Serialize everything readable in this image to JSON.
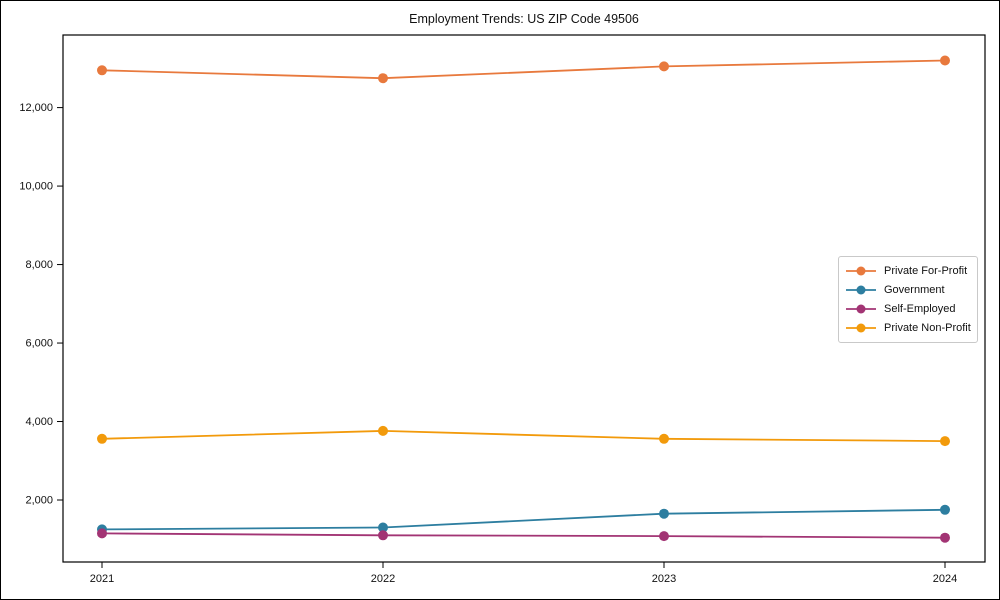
{
  "figure": {
    "background": "#ffffff",
    "frame_color": "#000000",
    "text_color": "#111111"
  },
  "chart_data": {
    "type": "line",
    "title": "Employment Trends: US ZIP Code 49506",
    "xlabel": "",
    "ylabel": "",
    "grid": false,
    "x": [
      "2021",
      "2022",
      "2023",
      "2024"
    ],
    "series": [
      {
        "name": "Private For-Profit",
        "color": "#E8793D",
        "values": [
          12950,
          12750,
          13050,
          13200
        ]
      },
      {
        "name": "Government",
        "color": "#2D7EA0",
        "values": [
          1250,
          1300,
          1650,
          1750
        ]
      },
      {
        "name": "Self-Employed",
        "color": "#A23474",
        "values": [
          1150,
          1100,
          1080,
          1040
        ]
      },
      {
        "name": "Private Non-Profit",
        "color": "#F29A0B",
        "values": [
          3560,
          3760,
          3560,
          3500
        ]
      }
    ],
    "ylim": [
      420,
      13850
    ],
    "yticks": {
      "values": [
        2000,
        4000,
        6000,
        8000,
        10000,
        12000
      ],
      "labels": [
        "2,000",
        "4,000",
        "6,000",
        "8,000",
        "10,000",
        "12,000"
      ]
    },
    "legend": {
      "position": "center-right",
      "entries": [
        "Private For-Profit",
        "Government",
        "Self-Employed",
        "Private Non-Profit"
      ]
    }
  }
}
